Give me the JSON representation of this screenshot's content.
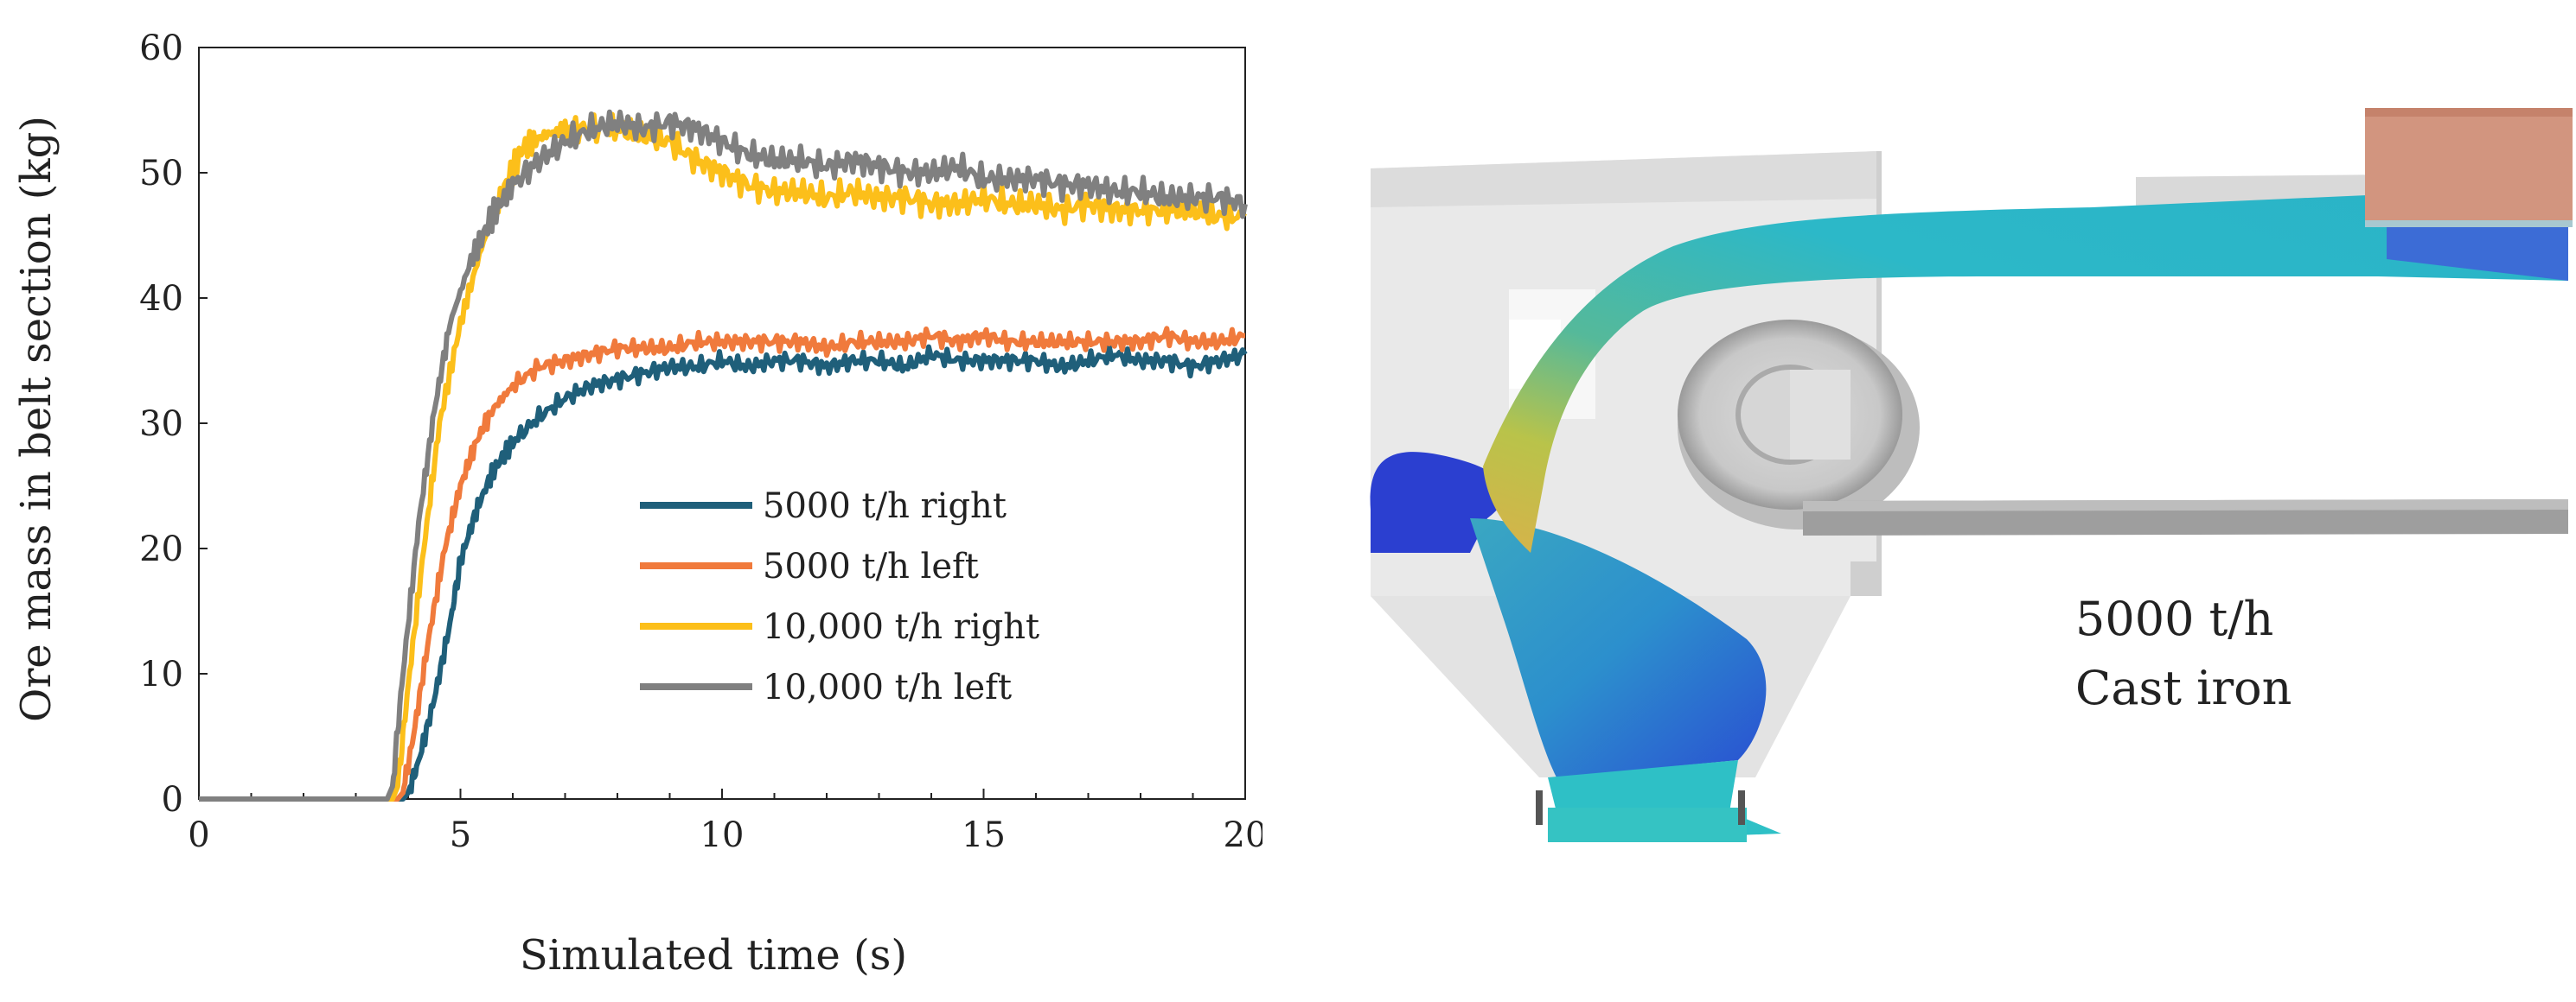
{
  "chart_data": {
    "type": "line",
    "title": "",
    "xlabel": "Simulated time (s)",
    "ylabel": "Ore mass in belt section (kg)",
    "xlim": [
      0,
      20
    ],
    "ylim": [
      0,
      60
    ],
    "xticks": [
      0,
      5,
      10,
      15,
      20
    ],
    "xtick_labels": [
      "0",
      "5",
      "10",
      "15",
      "20"
    ],
    "yticks": [
      0,
      10,
      20,
      30,
      40,
      50,
      60
    ],
    "ytick_labels": [
      "0",
      "10",
      "20",
      "30",
      "40",
      "50",
      "60"
    ],
    "grid": false,
    "legend_position": "bottom-right",
    "series": [
      {
        "name": "5000 t/h right",
        "color": "#1f5f7a",
        "x": [
          0,
          3.5,
          3.9,
          4.0,
          4.2,
          4.5,
          4.8,
          5.0,
          5.3,
          5.6,
          6.0,
          6.5,
          7.0,
          7.5,
          8.0,
          8.5,
          9.0,
          9.5,
          10.0,
          10.5,
          11.0,
          11.5,
          12.0,
          12.5,
          13.0,
          13.5,
          14.0,
          14.5,
          15.0,
          15.5,
          16.0,
          16.5,
          17.0,
          17.5,
          18.0,
          18.5,
          19.0,
          19.5,
          20.0
        ],
        "y": [
          0,
          0,
          0,
          0.5,
          3,
          8,
          14,
          19,
          23,
          26,
          28.5,
          30.5,
          32,
          33,
          33.5,
          34,
          34.5,
          34.5,
          35,
          34.5,
          35,
          35,
          34.5,
          35,
          35,
          34.5,
          35.5,
          35,
          35,
          35,
          35,
          34.5,
          35,
          35.5,
          35,
          35,
          34.5,
          35,
          35.5
        ]
      },
      {
        "name": "5000 t/h left",
        "color": "#f07a3c",
        "x": [
          0,
          3.5,
          3.8,
          3.9,
          4.1,
          4.4,
          4.7,
          5.0,
          5.3,
          5.6,
          6.0,
          6.5,
          7.0,
          7.5,
          8.0,
          8.5,
          9.0,
          9.5,
          10.0,
          10.5,
          11.0,
          11.5,
          12.0,
          12.5,
          13.0,
          13.5,
          14.0,
          14.5,
          15.0,
          15.5,
          16.0,
          16.5,
          17.0,
          17.5,
          18.0,
          18.5,
          19.0,
          19.5,
          20.0
        ],
        "y": [
          0,
          0,
          0,
          0.5,
          5,
          13,
          20,
          25,
          28.5,
          31,
          33,
          34.5,
          35,
          35.5,
          36,
          36,
          36,
          36.5,
          36.5,
          36.5,
          36.5,
          36.5,
          36,
          36.5,
          36.5,
          36.5,
          37,
          36.5,
          37,
          36.5,
          36.5,
          36.5,
          36.5,
          36.5,
          36.5,
          37,
          36.5,
          36.5,
          37
        ]
      },
      {
        "name": "10,000 t/h right",
        "color": "#fcbf1a",
        "x": [
          0,
          3.5,
          3.7,
          3.8,
          4.0,
          4.3,
          4.6,
          5.0,
          5.4,
          5.8,
          6.2,
          6.6,
          7.0,
          7.5,
          8.0,
          8.5,
          9.0,
          9.5,
          10.0,
          10.5,
          11.0,
          11.5,
          12.0,
          12.5,
          13.0,
          13.5,
          14.0,
          14.5,
          15.0,
          15.5,
          16.0,
          16.5,
          17.0,
          17.5,
          18.0,
          18.5,
          19.0,
          19.5,
          20.0
        ],
        "y": [
          0,
          0,
          0,
          1,
          9,
          20,
          30,
          38,
          44,
          48.5,
          52,
          53,
          53.5,
          53.5,
          53.5,
          53,
          52.5,
          51,
          50,
          49,
          48.5,
          48.5,
          48,
          48.5,
          48,
          48,
          47.5,
          47.5,
          48,
          47.5,
          47.5,
          47,
          47.5,
          47,
          47,
          47,
          47,
          46.5,
          46.5
        ]
      },
      {
        "name": "10,000 t/h left",
        "color": "#808080",
        "x": [
          0,
          3.4,
          3.6,
          3.7,
          3.9,
          4.2,
          4.5,
          4.8,
          5.2,
          5.6,
          6.0,
          6.5,
          7.0,
          7.5,
          8.0,
          8.5,
          9.0,
          9.5,
          10.0,
          10.5,
          11.0,
          11.5,
          12.0,
          12.5,
          13.0,
          13.5,
          14.0,
          14.5,
          15.0,
          15.5,
          16.0,
          16.5,
          17.0,
          17.5,
          18.0,
          18.5,
          19.0,
          19.5,
          20.0
        ],
        "y": [
          0,
          0,
          0,
          1,
          10,
          22,
          31,
          38,
          43,
          46.5,
          49,
          51,
          52.5,
          53.5,
          54,
          53.5,
          54,
          53.5,
          52.5,
          51.5,
          51,
          51,
          50.5,
          51,
          50.5,
          50,
          50,
          50.5,
          49.5,
          49.5,
          49.5,
          49,
          49,
          48.5,
          48.5,
          48,
          48,
          48,
          47.5
        ]
      }
    ]
  },
  "caption": {
    "line1": "5000 t/h",
    "line2": "Cast iron"
  }
}
